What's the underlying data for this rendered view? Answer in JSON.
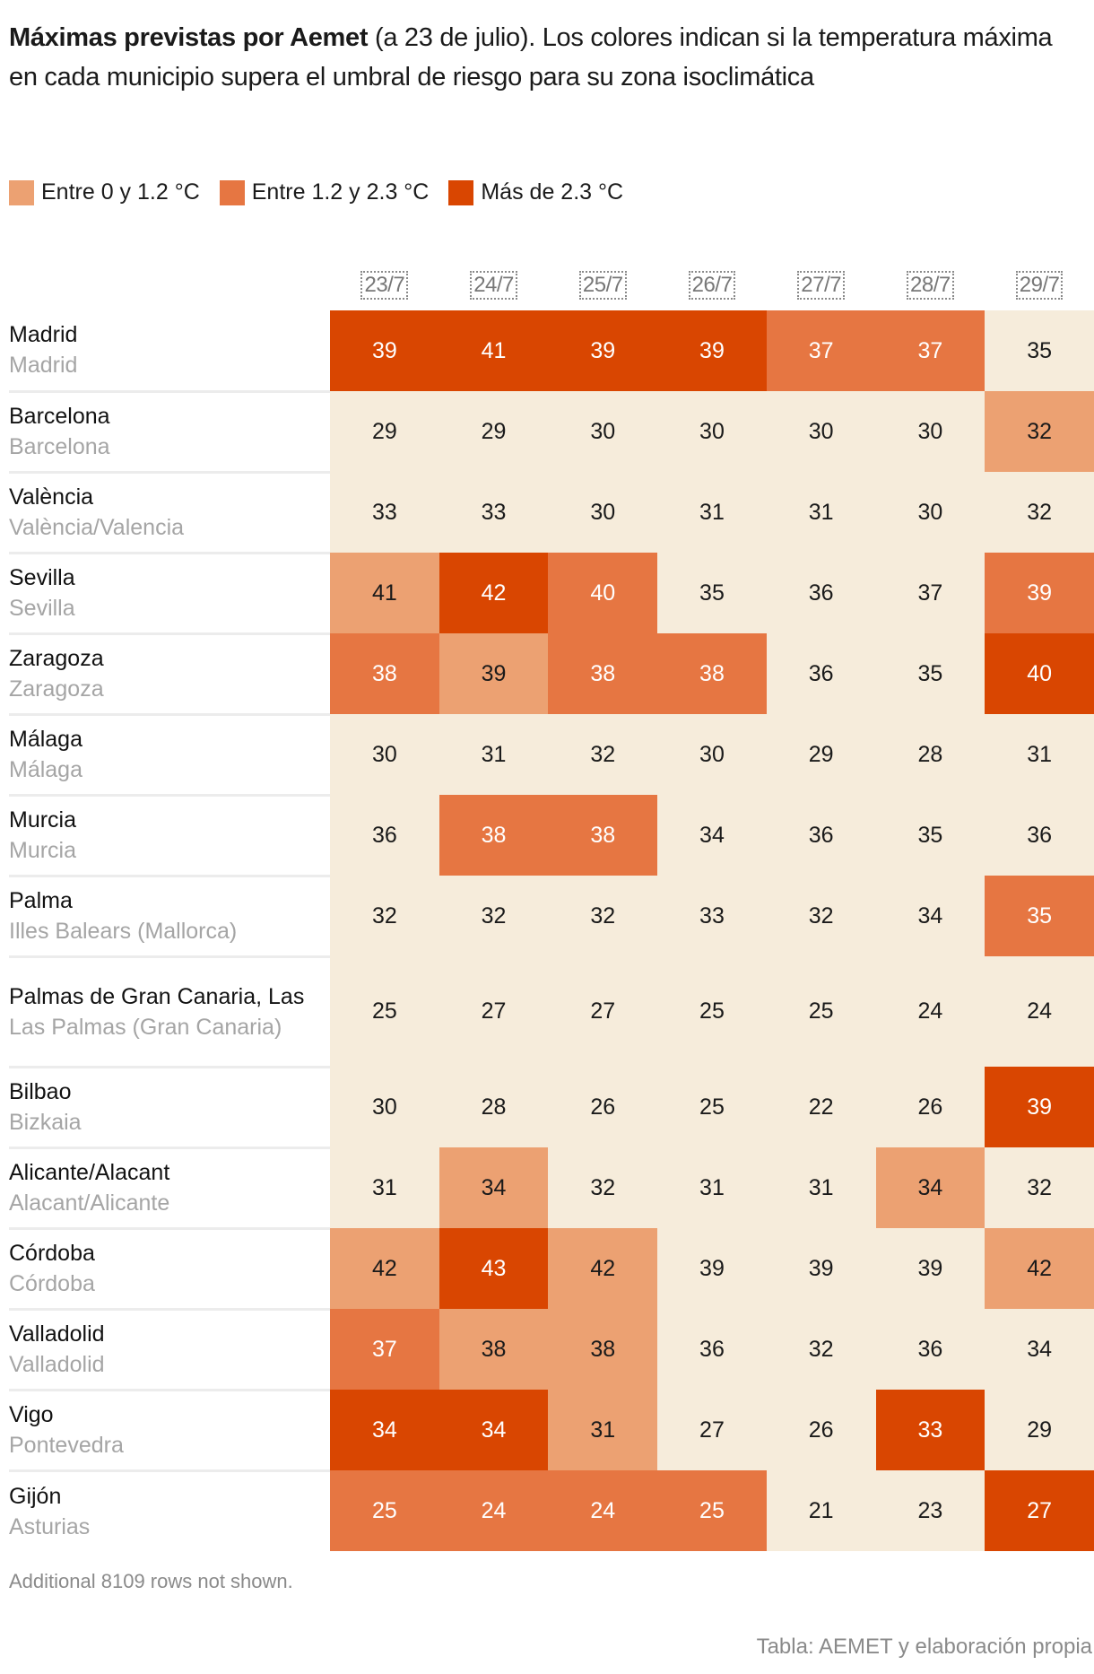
{
  "title": {
    "bold": "Máximas previstas por Aemet",
    "rest": " (a 23 de julio). Los colores indican si la temperatura máxima en cada municipio supera el umbral de riesgo para su zona isoclimática"
  },
  "legend": [
    {
      "label": "Entre 0 y 1.2 °C",
      "color": "#eca172"
    },
    {
      "label": "Entre 1.2 y 2.3 °C",
      "color": "#e67642"
    },
    {
      "label": "Más de 2.3 °C",
      "color": "#d94601"
    }
  ],
  "colors": {
    "level0": "#f6ecdb",
    "level1": "#eca172",
    "level2": "#e67642",
    "level3": "#d94601"
  },
  "chart_data": {
    "type": "heatmap",
    "title": "Máximas previstas por Aemet (a 23 de julio). Los colores indican si la temperatura máxima en cada municipio supera el umbral de riesgo para su zona isoclimática",
    "columns": [
      "23/7",
      "24/7",
      "25/7",
      "26/7",
      "27/7",
      "28/7",
      "29/7"
    ],
    "legend": [
      "Entre 0 y 1.2 °C",
      "Entre 1.2 y 2.3 °C",
      "Más de 2.3 °C"
    ],
    "rows": [
      {
        "city": "Madrid",
        "province": "Madrid",
        "values": [
          39,
          41,
          39,
          39,
          37,
          37,
          35
        ],
        "levels": [
          3,
          3,
          3,
          3,
          2,
          2,
          0
        ]
      },
      {
        "city": "Barcelona",
        "province": "Barcelona",
        "values": [
          29,
          29,
          30,
          30,
          30,
          30,
          32
        ],
        "levels": [
          0,
          0,
          0,
          0,
          0,
          0,
          1
        ]
      },
      {
        "city": "València",
        "province": "València/Valencia",
        "values": [
          33,
          33,
          30,
          31,
          31,
          30,
          32
        ],
        "levels": [
          0,
          0,
          0,
          0,
          0,
          0,
          0
        ]
      },
      {
        "city": "Sevilla",
        "province": "Sevilla",
        "values": [
          41,
          42,
          40,
          35,
          36,
          37,
          39
        ],
        "levels": [
          1,
          3,
          2,
          0,
          0,
          0,
          2
        ]
      },
      {
        "city": "Zaragoza",
        "province": "Zaragoza",
        "values": [
          38,
          39,
          38,
          38,
          36,
          35,
          40
        ],
        "levels": [
          2,
          1,
          2,
          2,
          0,
          0,
          3
        ]
      },
      {
        "city": "Málaga",
        "province": "Málaga",
        "values": [
          30,
          31,
          32,
          30,
          29,
          28,
          31
        ],
        "levels": [
          0,
          0,
          0,
          0,
          0,
          0,
          0
        ]
      },
      {
        "city": "Murcia",
        "province": "Murcia",
        "values": [
          36,
          38,
          38,
          34,
          36,
          35,
          36
        ],
        "levels": [
          0,
          2,
          2,
          0,
          0,
          0,
          0
        ]
      },
      {
        "city": "Palma",
        "province": "Illes Balears (Mallorca)",
        "values": [
          32,
          32,
          32,
          33,
          32,
          34,
          35
        ],
        "levels": [
          0,
          0,
          0,
          0,
          0,
          0,
          2
        ]
      },
      {
        "city": "Palmas de Gran Canaria, Las",
        "province": "Las Palmas (Gran Canaria)",
        "values": [
          25,
          27,
          27,
          25,
          25,
          24,
          24
        ],
        "levels": [
          0,
          0,
          0,
          0,
          0,
          0,
          0
        ]
      },
      {
        "city": "Bilbao",
        "province": "Bizkaia",
        "values": [
          30,
          28,
          26,
          25,
          22,
          26,
          39
        ],
        "levels": [
          0,
          0,
          0,
          0,
          0,
          0,
          3
        ]
      },
      {
        "city": "Alicante/Alacant",
        "province": "Alacant/Alicante",
        "values": [
          31,
          34,
          32,
          31,
          31,
          34,
          32
        ],
        "levels": [
          0,
          1,
          0,
          0,
          0,
          1,
          0
        ]
      },
      {
        "city": "Córdoba",
        "province": "Córdoba",
        "values": [
          42,
          43,
          42,
          39,
          39,
          39,
          42
        ],
        "levels": [
          1,
          3,
          1,
          0,
          0,
          0,
          1
        ]
      },
      {
        "city": "Valladolid",
        "province": "Valladolid",
        "values": [
          37,
          38,
          38,
          36,
          32,
          36,
          34
        ],
        "levels": [
          2,
          1,
          1,
          0,
          0,
          0,
          0
        ]
      },
      {
        "city": "Vigo",
        "province": "Pontevedra",
        "values": [
          34,
          34,
          31,
          27,
          26,
          33,
          29
        ],
        "levels": [
          3,
          3,
          1,
          0,
          0,
          3,
          0
        ]
      },
      {
        "city": "Gijón",
        "province": "Asturias",
        "values": [
          25,
          24,
          24,
          25,
          21,
          23,
          27
        ],
        "levels": [
          2,
          2,
          2,
          2,
          0,
          0,
          3
        ]
      }
    ]
  },
  "footer": {
    "note": "Additional 8109 rows not shown.",
    "source": "Tabla: AEMET y elaboración propia"
  }
}
